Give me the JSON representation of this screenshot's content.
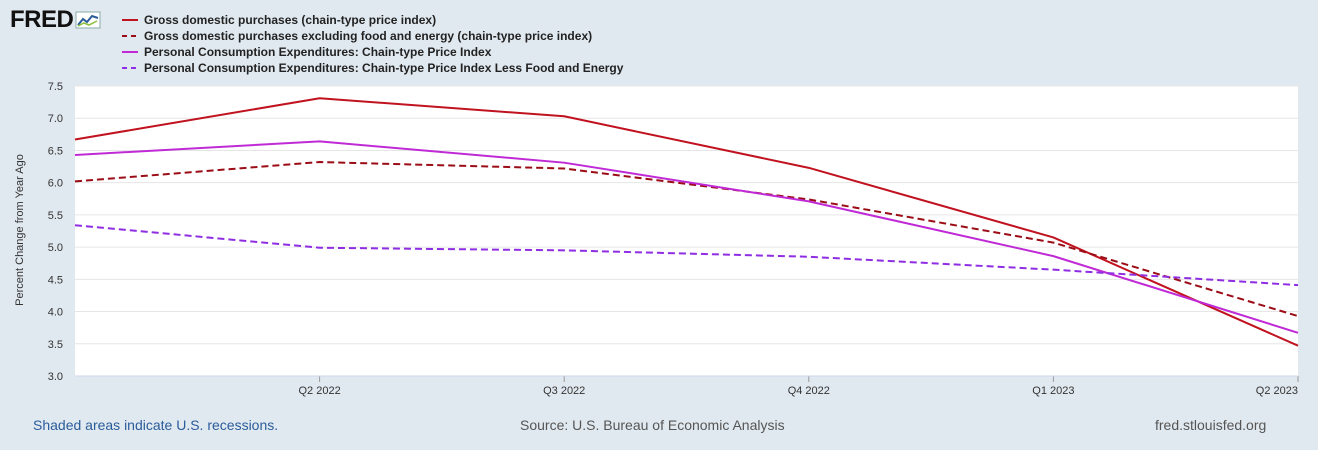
{
  "brand": {
    "logo_text": "FRED"
  },
  "chart_data": {
    "type": "line",
    "title": "",
    "ylabel": "Percent Change from Year Ago",
    "xlabel": "",
    "ylim": [
      3.0,
      7.5
    ],
    "yticks": [
      "3.0",
      "3.5",
      "4.0",
      "4.5",
      "5.0",
      "5.5",
      "6.0",
      "6.5",
      "7.0",
      "7.5"
    ],
    "x_positions": [
      0,
      1,
      2,
      3,
      4,
      5
    ],
    "x_tick_labels": [
      {
        "pos": 1,
        "label": "Q2 2022"
      },
      {
        "pos": 2,
        "label": "Q3 2022"
      },
      {
        "pos": 3,
        "label": "Q4 2022"
      },
      {
        "pos": 4,
        "label": "Q1 2023"
      },
      {
        "pos": 5,
        "label": "Q2 2023"
      }
    ],
    "series": [
      {
        "name": "Gross domestic purchases (chain-type price index)",
        "color": "#c1121f",
        "dash": "solid",
        "values": [
          6.67,
          7.31,
          7.03,
          6.23,
          5.15,
          3.47
        ]
      },
      {
        "name": "Gross domestic purchases excluding food and energy (chain-type price index)",
        "color": "#9b0d16",
        "dash": "dashed",
        "values": [
          6.02,
          6.32,
          6.22,
          5.74,
          5.07,
          3.93
        ]
      },
      {
        "name": "Personal Consumption Expenditures: Chain-type Price Index",
        "color": "#c02ad6",
        "dash": "solid",
        "values": [
          6.43,
          6.64,
          6.31,
          5.71,
          4.86,
          3.67
        ]
      },
      {
        "name": "Personal Consumption Expenditures: Chain-type Price Index Less Food and Energy",
        "color": "#8e2de2",
        "dash": "dashed",
        "values": [
          5.34,
          4.99,
          4.95,
          4.85,
          4.65,
          4.41
        ]
      }
    ]
  },
  "footer": {
    "recessions_note": "Shaded areas indicate U.S. recessions.",
    "source": "Source: U.S. Bureau of Economic Analysis",
    "site": "fred.stlouisfed.org"
  }
}
